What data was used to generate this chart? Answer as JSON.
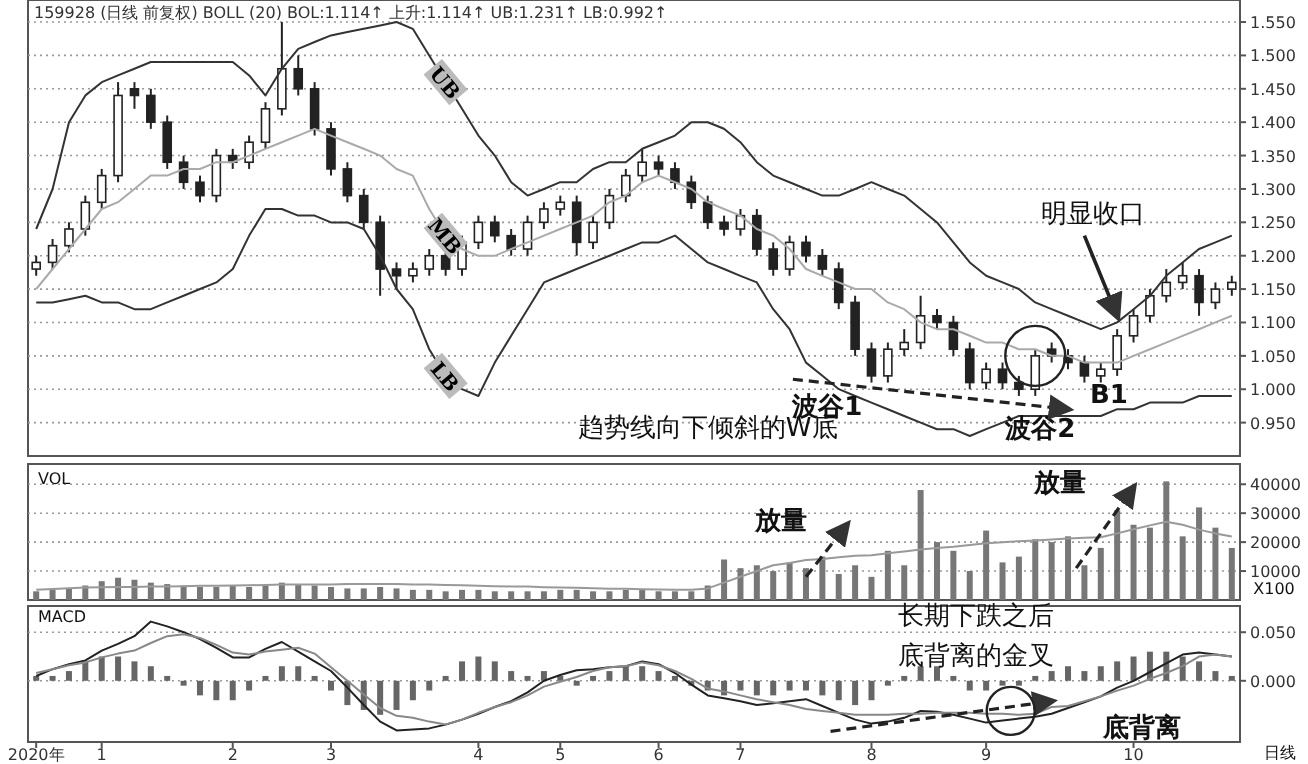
{
  "chart_data": [
    {
      "type": "candlestick",
      "title": "159928 (日线 前复权)  BOLL (20)  BOL:1.114↑  上升:1.114↑  UB:1.231↑  LB:0.992↑",
      "categories": [
        null,
        null,
        null,
        null,
        null,
        null,
        null,
        null,
        null,
        null,
        null,
        null,
        null,
        null,
        null,
        null,
        null,
        null,
        null,
        null,
        null,
        null,
        null,
        null,
        null,
        null,
        null,
        null,
        null,
        null,
        null,
        null,
        null,
        null,
        null,
        null,
        null,
        null,
        null,
        null,
        null,
        null,
        null,
        null,
        null,
        null,
        null,
        null,
        null,
        null,
        null,
        null,
        null,
        null,
        null,
        null,
        null,
        null,
        null,
        null,
        null,
        null,
        null,
        null,
        null,
        null,
        null,
        null,
        null,
        null,
        null,
        null,
        null,
        null
      ],
      "ohlc": [
        [
          1.18,
          1.2,
          1.17,
          1.19
        ],
        [
          1.19,
          1.225,
          1.18,
          1.215
        ],
        [
          1.215,
          1.25,
          1.205,
          1.24
        ],
        [
          1.24,
          1.29,
          1.23,
          1.28
        ],
        [
          1.28,
          1.33,
          1.27,
          1.32
        ],
        [
          1.32,
          1.46,
          1.31,
          1.44
        ],
        [
          1.45,
          1.46,
          1.42,
          1.44
        ],
        [
          1.44,
          1.45,
          1.39,
          1.4
        ],
        [
          1.4,
          1.41,
          1.33,
          1.34
        ],
        [
          1.34,
          1.35,
          1.3,
          1.31
        ],
        [
          1.31,
          1.32,
          1.28,
          1.29
        ],
        [
          1.29,
          1.36,
          1.28,
          1.35
        ],
        [
          1.35,
          1.36,
          1.33,
          1.34
        ],
        [
          1.34,
          1.38,
          1.33,
          1.37
        ],
        [
          1.37,
          1.43,
          1.36,
          1.42
        ],
        [
          1.42,
          1.55,
          1.41,
          1.48
        ],
        [
          1.48,
          1.5,
          1.44,
          1.45
        ],
        [
          1.45,
          1.46,
          1.38,
          1.39
        ],
        [
          1.39,
          1.4,
          1.32,
          1.33
        ],
        [
          1.33,
          1.34,
          1.28,
          1.29
        ],
        [
          1.29,
          1.3,
          1.24,
          1.25
        ],
        [
          1.25,
          1.26,
          1.14,
          1.18
        ],
        [
          1.18,
          1.19,
          1.15,
          1.17
        ],
        [
          1.17,
          1.19,
          1.16,
          1.18
        ],
        [
          1.18,
          1.21,
          1.17,
          1.2
        ],
        [
          1.2,
          1.21,
          1.17,
          1.18
        ],
        [
          1.18,
          1.23,
          1.17,
          1.22
        ],
        [
          1.22,
          1.26,
          1.21,
          1.25
        ],
        [
          1.25,
          1.26,
          1.22,
          1.23
        ],
        [
          1.23,
          1.24,
          1.2,
          1.21
        ],
        [
          1.21,
          1.26,
          1.2,
          1.25
        ],
        [
          1.25,
          1.28,
          1.24,
          1.27
        ],
        [
          1.27,
          1.29,
          1.26,
          1.28
        ],
        [
          1.28,
          1.29,
          1.2,
          1.22
        ],
        [
          1.22,
          1.26,
          1.21,
          1.25
        ],
        [
          1.25,
          1.3,
          1.24,
          1.29
        ],
        [
          1.29,
          1.33,
          1.28,
          1.32
        ],
        [
          1.32,
          1.36,
          1.31,
          1.34
        ],
        [
          1.34,
          1.35,
          1.32,
          1.33
        ],
        [
          1.33,
          1.34,
          1.3,
          1.31
        ],
        [
          1.31,
          1.32,
          1.27,
          1.28
        ],
        [
          1.28,
          1.29,
          1.24,
          1.25
        ],
        [
          1.25,
          1.26,
          1.23,
          1.24
        ],
        [
          1.24,
          1.27,
          1.23,
          1.26
        ],
        [
          1.26,
          1.27,
          1.2,
          1.21
        ],
        [
          1.21,
          1.22,
          1.17,
          1.18
        ],
        [
          1.18,
          1.23,
          1.17,
          1.22
        ],
        [
          1.22,
          1.23,
          1.19,
          1.2
        ],
        [
          1.2,
          1.21,
          1.17,
          1.18
        ],
        [
          1.18,
          1.19,
          1.12,
          1.13
        ],
        [
          1.13,
          1.14,
          1.05,
          1.06
        ],
        [
          1.06,
          1.07,
          1.01,
          1.02
        ],
        [
          1.02,
          1.07,
          1.01,
          1.06
        ],
        [
          1.06,
          1.09,
          1.05,
          1.07
        ],
        [
          1.07,
          1.14,
          1.06,
          1.11
        ],
        [
          1.11,
          1.12,
          1.09,
          1.1
        ],
        [
          1.1,
          1.11,
          1.05,
          1.06
        ],
        [
          1.06,
          1.07,
          1.0,
          1.01
        ],
        [
          1.01,
          1.04,
          1.0,
          1.03
        ],
        [
          1.03,
          1.04,
          1.0,
          1.01
        ],
        [
          1.01,
          1.02,
          0.99,
          1.0
        ],
        [
          1.0,
          1.06,
          0.99,
          1.05
        ],
        [
          1.06,
          1.07,
          1.04,
          1.05
        ],
        [
          1.05,
          1.06,
          1.03,
          1.04
        ],
        [
          1.04,
          1.05,
          1.01,
          1.02
        ],
        [
          1.02,
          1.04,
          1.01,
          1.03
        ],
        [
          1.03,
          1.09,
          1.02,
          1.08
        ],
        [
          1.08,
          1.12,
          1.07,
          1.11
        ],
        [
          1.11,
          1.15,
          1.1,
          1.14
        ],
        [
          1.14,
          1.18,
          1.13,
          1.16
        ],
        [
          1.16,
          1.19,
          1.15,
          1.17
        ],
        [
          1.17,
          1.18,
          1.11,
          1.13
        ],
        [
          1.13,
          1.16,
          1.12,
          1.15
        ],
        [
          1.15,
          1.17,
          1.14,
          1.16
        ]
      ],
      "series": [
        {
          "name": "UB",
          "type": "line",
          "color": "#333333",
          "values": [
            1.24,
            1.3,
            1.4,
            1.44,
            1.46,
            1.47,
            1.48,
            1.49,
            1.49,
            1.49,
            1.49,
            1.49,
            1.49,
            1.47,
            1.44,
            1.48,
            1.51,
            1.52,
            1.53,
            1.535,
            1.54,
            1.545,
            1.55,
            1.54,
            1.5,
            1.46,
            1.42,
            1.38,
            1.35,
            1.31,
            1.29,
            1.3,
            1.31,
            1.31,
            1.33,
            1.34,
            1.34,
            1.36,
            1.37,
            1.38,
            1.4,
            1.4,
            1.39,
            1.37,
            1.34,
            1.32,
            1.31,
            1.3,
            1.29,
            1.29,
            1.3,
            1.31,
            1.3,
            1.29,
            1.27,
            1.25,
            1.22,
            1.19,
            1.17,
            1.16,
            1.15,
            1.13,
            1.12,
            1.11,
            1.1,
            1.09,
            1.1,
            1.12,
            1.14,
            1.17,
            1.19,
            1.21,
            1.22,
            1.23
          ]
        },
        {
          "name": "MB",
          "type": "line",
          "color": "#aaaaaa",
          "values": [
            1.15,
            1.18,
            1.21,
            1.24,
            1.27,
            1.28,
            1.3,
            1.32,
            1.32,
            1.33,
            1.33,
            1.34,
            1.34,
            1.35,
            1.36,
            1.37,
            1.38,
            1.39,
            1.38,
            1.37,
            1.36,
            1.35,
            1.33,
            1.32,
            1.27,
            1.23,
            1.21,
            1.2,
            1.2,
            1.21,
            1.22,
            1.23,
            1.24,
            1.25,
            1.26,
            1.28,
            1.29,
            1.31,
            1.32,
            1.31,
            1.3,
            1.28,
            1.27,
            1.26,
            1.24,
            1.23,
            1.21,
            1.18,
            1.17,
            1.16,
            1.15,
            1.15,
            1.13,
            1.12,
            1.1,
            1.09,
            1.09,
            1.08,
            1.07,
            1.07,
            1.06,
            1.06,
            1.05,
            1.05,
            1.04,
            1.04,
            1.04,
            1.05,
            1.06,
            1.07,
            1.08,
            1.09,
            1.1,
            1.11
          ]
        },
        {
          "name": "LB",
          "type": "line",
          "color": "#333333",
          "values": [
            1.13,
            1.13,
            1.135,
            1.14,
            1.13,
            1.13,
            1.12,
            1.12,
            1.13,
            1.14,
            1.15,
            1.16,
            1.18,
            1.23,
            1.27,
            1.27,
            1.26,
            1.26,
            1.25,
            1.25,
            1.24,
            1.2,
            1.15,
            1.12,
            1.06,
            1.02,
            1.0,
            0.99,
            1.04,
            1.08,
            1.12,
            1.16,
            1.17,
            1.18,
            1.19,
            1.2,
            1.21,
            1.22,
            1.22,
            1.23,
            1.21,
            1.19,
            1.18,
            1.17,
            1.16,
            1.12,
            1.09,
            1.04,
            1.02,
            1.0,
            0.99,
            0.98,
            0.97,
            0.96,
            0.95,
            0.94,
            0.94,
            0.93,
            0.94,
            0.95,
            0.96,
            0.96,
            0.96,
            0.96,
            0.96,
            0.96,
            0.97,
            0.97,
            0.98,
            0.98,
            0.98,
            0.99,
            0.99,
            0.99
          ]
        }
      ],
      "annotations": [
        "趋势线向下倾斜的W底",
        "波谷1",
        "波谷2",
        "B1",
        "明显收口"
      ],
      "ylim": [
        0.9,
        1.583
      ],
      "yticks": [
        {
          "value": 0.95,
          "label": "0.950"
        },
        {
          "value": 1.0,
          "label": "1.000"
        },
        {
          "value": 1.05,
          "label": "1.050"
        },
        {
          "value": 1.1,
          "label": "1.100"
        },
        {
          "value": 1.15,
          "label": "1.150"
        },
        {
          "value": 1.2,
          "label": "1.200"
        },
        {
          "value": 1.25,
          "label": "1.250"
        },
        {
          "value": 1.3,
          "label": "1.300"
        },
        {
          "value": 1.35,
          "label": "1.350"
        },
        {
          "value": 1.4,
          "label": "1.400"
        },
        {
          "value": 1.45,
          "label": "1.450"
        },
        {
          "value": 1.5,
          "label": "1.500"
        },
        {
          "value": 1.55,
          "label": "1.550"
        }
      ],
      "tick_labels": "y",
      "grid": "y"
    },
    {
      "type": "bar",
      "categories": [
        null,
        null,
        null,
        null,
        null,
        null,
        null,
        null,
        null,
        null,
        null,
        null,
        null,
        null,
        null,
        null,
        null,
        null,
        null,
        null,
        null,
        null,
        null,
        null,
        null,
        null,
        null,
        null,
        null,
        null,
        null,
        null,
        null,
        null,
        null,
        null,
        null,
        null,
        null,
        null,
        null,
        null,
        null,
        null,
        null,
        null,
        null,
        null,
        null,
        null,
        null,
        null,
        null,
        null,
        null,
        null,
        null,
        null,
        null,
        null,
        null,
        null,
        null,
        null,
        null,
        null,
        null,
        null,
        null,
        null,
        null,
        null,
        null,
        null
      ],
      "series": [
        {
          "type": "bar",
          "color": "#777777",
          "values": [
            3000,
            3500,
            4000,
            5000,
            6500,
            7700,
            7000,
            6000,
            5500,
            5000,
            4500,
            4500,
            5000,
            4500,
            5000,
            6000,
            5500,
            5000,
            4500,
            4000,
            4000,
            4500,
            4000,
            3500,
            3500,
            3000,
            3500,
            3500,
            3000,
            3000,
            3000,
            3000,
            3500,
            3500,
            3000,
            3000,
            3500,
            3500,
            3000,
            3000,
            3000,
            5000,
            14000,
            11000,
            12000,
            10000,
            13000,
            11000,
            15000,
            9000,
            12000,
            8000,
            17000,
            12000,
            38000,
            20000,
            17000,
            10000,
            24000,
            13000,
            15000,
            21000,
            20000,
            22000,
            12000,
            18000,
            31000,
            26000,
            25000,
            41000,
            22000,
            32000,
            25000,
            18000
          ]
        },
        {
          "type": "line",
          "color": "#999999",
          "values": [
            3500,
            3800,
            4100,
            4300,
            4400,
            4500,
            4500,
            4600,
            4700,
            4800,
            4900,
            4900,
            5000,
            5100,
            5200,
            5300,
            5300,
            5400,
            5400,
            5500,
            5500,
            5500,
            5500,
            5400,
            5300,
            5200,
            5100,
            4900,
            4800,
            4700,
            4600,
            4400,
            4300,
            4200,
            4100,
            3900,
            3900,
            3700,
            3600,
            3500,
            3500,
            4000,
            6000,
            8000,
            10000,
            12000,
            12800,
            13800,
            14200,
            14800,
            15300,
            15500,
            16200,
            16800,
            17400,
            18000,
            18400,
            19000,
            19600,
            20000,
            20300,
            20500,
            20900,
            21200,
            21500,
            21700,
            23000,
            24500,
            25800,
            27000,
            26000,
            24300,
            23000,
            22000
          ]
        }
      ],
      "annotations": [
        "VOL",
        "X100",
        "放量",
        "放量"
      ],
      "ylim": [
        0,
        47000
      ],
      "yticks": [
        10000,
        20000,
        30000,
        40000
      ],
      "tick_labels": "y",
      "grid": "y"
    },
    {
      "type": "bar",
      "categories": [
        "2020年",
        null,
        null,
        null,
        "1",
        null,
        null,
        null,
        null,
        null,
        null,
        null,
        "2",
        null,
        null,
        null,
        null,
        null,
        "3",
        null,
        null,
        null,
        null,
        null,
        null,
        null,
        null,
        "4",
        null,
        null,
        null,
        null,
        "5",
        null,
        null,
        null,
        null,
        null,
        "6",
        null,
        null,
        null,
        null,
        "7",
        null,
        null,
        null,
        null,
        null,
        null,
        null,
        "8",
        null,
        null,
        null,
        null,
        null,
        null,
        "9",
        null,
        null,
        null,
        null,
        null,
        null,
        null,
        null,
        "10",
        null,
        null,
        null,
        null,
        null,
        null
      ],
      "series": [
        {
          "type": "bar",
          "color": "#666666",
          "values": [
            0.005,
            0.005,
            0.01,
            0.02,
            0.025,
            0.025,
            0.02,
            0.015,
            0.005,
            -0.005,
            -0.015,
            -0.02,
            -0.02,
            -0.01,
            0.005,
            0.015,
            0.015,
            0.005,
            -0.01,
            -0.025,
            -0.03,
            -0.035,
            -0.03,
            -0.02,
            -0.01,
            0.005,
            0.02,
            0.025,
            0.02,
            0.01,
            0.005,
            0.01,
            0.005,
            -0.005,
            0.005,
            0.01,
            0.015,
            0.015,
            0.01,
            0.005,
            -0.005,
            -0.01,
            -0.015,
            -0.01,
            -0.015,
            -0.015,
            -0.01,
            -0.01,
            -0.015,
            -0.02,
            -0.025,
            -0.02,
            -0.005,
            0.005,
            0.015,
            0.015,
            0.005,
            -0.01,
            -0.01,
            -0.005,
            -0.005,
            0.005,
            0.01,
            0.015,
            0.01,
            0.015,
            0.02,
            0.025,
            0.03,
            0.03,
            0.025,
            0.02,
            0.01,
            0.005
          ]
        },
        {
          "type": "line",
          "color": "#222222",
          "values": [
            0.005,
            0.012,
            0.017,
            0.021,
            0.031,
            0.038,
            0.046,
            0.061,
            0.056,
            0.05,
            0.043,
            0.034,
            0.024,
            0.024,
            0.033,
            0.04,
            0.03,
            0.02,
            0.01,
            -0.007,
            -0.025,
            -0.042,
            -0.051,
            -0.05,
            -0.049,
            -0.045,
            -0.04,
            -0.034,
            -0.027,
            -0.021,
            -0.012,
            0,
            0.006,
            0.011,
            0.012,
            0.014,
            0.015,
            0.02,
            0.017,
            0.008,
            -0.004,
            -0.015,
            -0.018,
            -0.021,
            -0.025,
            -0.023,
            -0.021,
            -0.019,
            -0.026,
            -0.033,
            -0.04,
            -0.044,
            -0.042,
            -0.038,
            -0.031,
            -0.032,
            -0.035,
            -0.039,
            -0.043,
            -0.041,
            -0.039,
            -0.037,
            -0.034,
            -0.028,
            -0.022,
            -0.016,
            -0.007,
            0,
            0.009,
            0.018,
            0.027,
            0.029,
            0.027,
            0.025
          ]
        },
        {
          "type": "line",
          "color": "#888888",
          "values": [
            0.008,
            0.012,
            0.016,
            0.019,
            0.024,
            0.028,
            0.031,
            0.039,
            0.046,
            0.048,
            0.044,
            0.037,
            0.029,
            0.027,
            0.03,
            0.032,
            0.034,
            0.028,
            0.014,
            0,
            -0.014,
            -0.028,
            -0.036,
            -0.038,
            -0.042,
            -0.045,
            -0.04,
            -0.033,
            -0.027,
            -0.022,
            -0.015,
            -0.006,
            -0.001,
            0.004,
            0.01,
            0.014,
            0.015,
            0.019,
            0.016,
            0.01,
            0.002,
            -0.008,
            -0.011,
            -0.015,
            -0.019,
            -0.022,
            -0.025,
            -0.029,
            -0.031,
            -0.033,
            -0.035,
            -0.035,
            -0.035,
            -0.034,
            -0.034,
            -0.033,
            -0.033,
            -0.033,
            -0.034,
            -0.034,
            -0.035,
            -0.034,
            -0.027,
            -0.026,
            -0.021,
            -0.016,
            -0.01,
            -0.005,
            0.002,
            0.008,
            0.015,
            0.025,
            0.027,
            0.025
          ]
        }
      ],
      "annotations": [
        "MACD",
        "长期下跌之后",
        "底背离的金叉",
        "日线",
        "底背离"
      ],
      "ylim": [
        -0.063,
        0.077
      ],
      "yticks": [
        {
          "value": 0,
          "label": "0.000"
        },
        {
          "value": 0.05,
          "label": "0.050"
        }
      ],
      "grid": "y"
    }
  ]
}
